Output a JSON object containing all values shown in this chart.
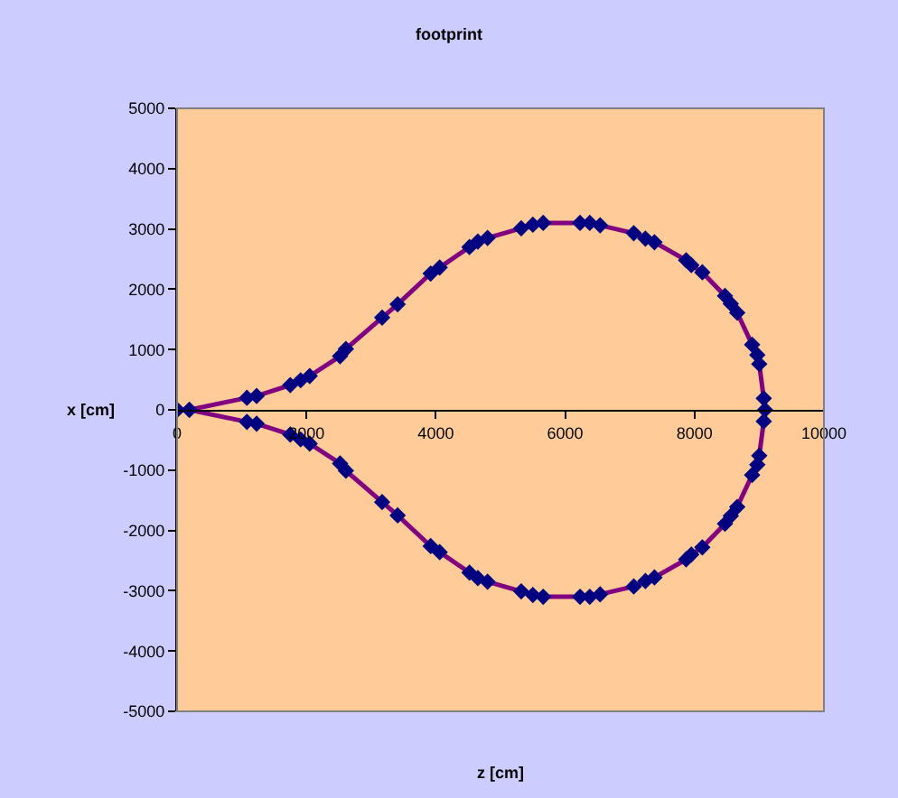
{
  "chart_data": {
    "type": "line",
    "title": "footprint",
    "xlabel": "z [cm]",
    "ylabel": "x [cm]",
    "marker": "diamond",
    "line_style": "solid",
    "xlim": [
      0,
      10000
    ],
    "xticks": [
      0,
      2000,
      4000,
      6000,
      8000,
      10000
    ],
    "ylim": [
      -5000,
      5000
    ],
    "yticks": [
      -5000,
      -4000,
      -3000,
      -2000,
      -1000,
      0,
      1000,
      2000,
      3000,
      4000,
      5000
    ],
    "series": [
      {
        "color": "#800080",
        "x": [
          0,
          190,
          1080,
          1230,
          1750,
          1910,
          2050,
          2520,
          2610,
          3170,
          3410,
          3920,
          4060,
          4520,
          4650,
          4800,
          5320,
          5500,
          5660,
          6230,
          6380,
          6540,
          7060,
          7240,
          7380,
          7870,
          7950,
          8120,
          8470,
          8560,
          8660,
          8890,
          8970,
          9000,
          9070,
          9090
        ],
        "values": [
          0,
          0,
          200,
          230,
          410,
          490,
          560,
          890,
          1010,
          1530,
          1750,
          2260,
          2360,
          2700,
          2790,
          2850,
          3010,
          3070,
          3100,
          3100,
          3100,
          3060,
          2930,
          2840,
          2780,
          2480,
          2400,
          2280,
          1890,
          1760,
          1610,
          1080,
          910,
          760,
          190,
          0
        ]
      },
      {
        "color": "#800080",
        "x": [
          0,
          190,
          1080,
          1230,
          1750,
          1910,
          2050,
          2520,
          2610,
          3170,
          3410,
          3920,
          4060,
          4520,
          4650,
          4800,
          5320,
          5500,
          5660,
          6230,
          6380,
          6540,
          7060,
          7240,
          7380,
          7870,
          7950,
          8120,
          8470,
          8560,
          8660,
          8890,
          8970,
          9000,
          9070
        ],
        "values": [
          0,
          0,
          -200,
          -230,
          -410,
          -490,
          -560,
          -890,
          -1010,
          -1530,
          -1750,
          -2260,
          -2360,
          -2700,
          -2790,
          -2850,
          -3010,
          -3070,
          -3100,
          -3100,
          -3100,
          -3060,
          -2930,
          -2840,
          -2780,
          -2480,
          -2400,
          -2280,
          -1890,
          -1760,
          -1610,
          -1080,
          -910,
          -760,
          -190
        ]
      }
    ]
  }
}
